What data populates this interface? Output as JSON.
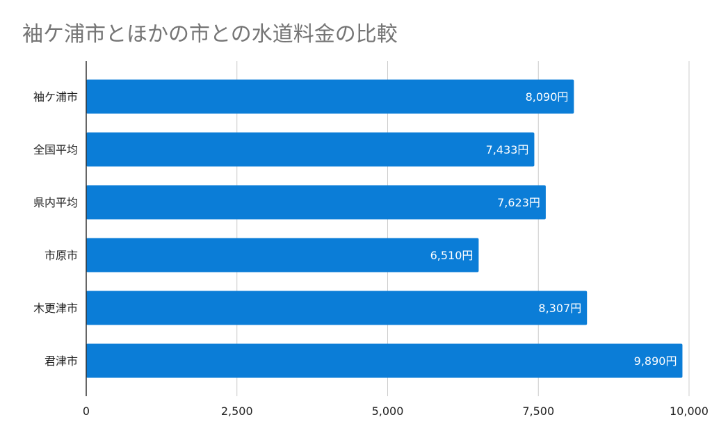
{
  "chart_data": {
    "type": "bar",
    "orientation": "horizontal",
    "title": "袖ケ浦市とほかの市との水道料金の比較",
    "categories": [
      "袖ケ浦市",
      "全国平均",
      "県内平均",
      "市原市",
      "木更津市",
      "君津市"
    ],
    "values": [
      8090,
      7433,
      7623,
      6510,
      8307,
      9890
    ],
    "data_labels": [
      "8,090円",
      "7,433円",
      "7,623円",
      "6,510円",
      "8,307円",
      "9,890円"
    ],
    "xlim": [
      0,
      10000
    ],
    "xticks": [
      0,
      2500,
      5000,
      7500,
      10000
    ],
    "xtick_labels": [
      "0",
      "2,500",
      "5,000",
      "7,500",
      "10,000"
    ],
    "xlabel": "",
    "ylabel": "",
    "grid": true,
    "bar_color": "#0b7dd7"
  }
}
